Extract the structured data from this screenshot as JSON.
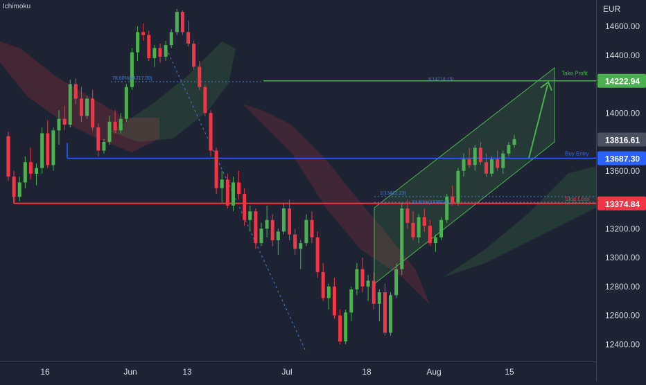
{
  "header": {
    "indicator": "Ichimoku",
    "currency": "EUR"
  },
  "chart_data": {
    "type": "candlestick",
    "y_ticks": [
      12400,
      12600,
      12800,
      13000,
      13200,
      13400,
      13600,
      13800,
      14000,
      14200,
      14400,
      14600
    ],
    "ylim": [
      12330,
      14760
    ],
    "x_ticks": [
      "16",
      "Jun",
      "13",
      "Jul",
      "18",
      "Aug",
      "15"
    ],
    "price_labels": [
      {
        "text": "14222.94",
        "value": 14222.94,
        "color": "#4caf50"
      },
      {
        "text": "13816.61",
        "value": 13816.61,
        "color": "#4a5060"
      },
      {
        "text": "13687.30",
        "value": 13687.3,
        "color": "#2962ff"
      },
      {
        "text": "13374.84",
        "value": 13374.84,
        "color": "#f23645"
      }
    ],
    "annotations": {
      "take_profit": "Take Profit",
      "buy_entry": "Buy Entry",
      "stop_loss": "Stop Loss",
      "fib_left": "78.60%(14217.00)",
      "fib_right": "1(14210.15)",
      "fib_mid_top": "1(13422.23)",
      "fib_mid_bottom": "23.60%(13382.81)"
    },
    "levels": {
      "take_profit": 14222.94,
      "buy_entry": 13687.3,
      "stop_loss": 13374.84
    },
    "colors": {
      "up": "#4caf50",
      "down": "#f23645",
      "take_profit": "#4caf50",
      "buy_entry": "#2962ff",
      "stop_loss": "#f23645",
      "fib": "#4a78c8",
      "channel": "#4caf50"
    },
    "candles": [
      [
        13840,
        13870,
        13530,
        13560
      ],
      [
        13560,
        13600,
        13380,
        13420
      ],
      [
        13420,
        13560,
        13390,
        13520
      ],
      [
        13520,
        13700,
        13480,
        13660
      ],
      [
        13660,
        13760,
        13540,
        13580
      ],
      [
        13580,
        13650,
        13500,
        13620
      ],
      [
        13620,
        13900,
        13580,
        13860
      ],
      [
        13860,
        13950,
        13620,
        13640
      ],
      [
        13640,
        13900,
        13600,
        13880
      ],
      [
        13880,
        14020,
        13780,
        13960
      ],
      [
        13960,
        14050,
        13880,
        13920
      ],
      [
        13920,
        14230,
        13900,
        14200
      ],
      [
        14200,
        14240,
        14060,
        14100
      ],
      [
        14100,
        14180,
        13940,
        13980
      ],
      [
        13980,
        14120,
        13960,
        14100
      ],
      [
        14100,
        14160,
        13880,
        13900
      ],
      [
        13900,
        13930,
        13700,
        13740
      ],
      [
        13740,
        13820,
        13720,
        13800
      ],
      [
        13800,
        13980,
        13780,
        13940
      ],
      [
        13940,
        14020,
        13860,
        13880
      ],
      [
        13880,
        14000,
        13860,
        13960
      ],
      [
        13960,
        14200,
        13940,
        14180
      ],
      [
        14180,
        14450,
        14160,
        14420
      ],
      [
        14420,
        14600,
        14360,
        14560
      ],
      [
        14560,
        14620,
        14500,
        14540
      ],
      [
        14540,
        14570,
        14360,
        14380
      ],
      [
        14380,
        14470,
        14320,
        14450
      ],
      [
        14450,
        14480,
        14350,
        14390
      ],
      [
        14390,
        14500,
        14360,
        14470
      ],
      [
        14470,
        14580,
        14450,
        14560
      ],
      [
        14560,
        14720,
        14540,
        14700
      ],
      [
        14700,
        14710,
        14540,
        14560
      ],
      [
        14560,
        14640,
        14460,
        14480
      ],
      [
        14480,
        14500,
        14300,
        14320
      ],
      [
        14320,
        14360,
        14160,
        14180
      ],
      [
        14180,
        14200,
        13980,
        14000
      ],
      [
        14000,
        14020,
        13700,
        13740
      ],
      [
        13740,
        13760,
        13440,
        13480
      ],
      [
        13480,
        13600,
        13380,
        13540
      ],
      [
        13540,
        13580,
        13340,
        13360
      ],
      [
        13360,
        13560,
        13320,
        13520
      ],
      [
        13520,
        13600,
        13400,
        13440
      ],
      [
        13440,
        13480,
        13220,
        13260
      ],
      [
        13260,
        13360,
        13180,
        13320
      ],
      [
        13320,
        13340,
        13060,
        13100
      ],
      [
        13100,
        13240,
        13080,
        13200
      ],
      [
        13200,
        13360,
        13140,
        13260
      ],
      [
        13260,
        13300,
        13080,
        13120
      ],
      [
        13120,
        13200,
        13020,
        13180
      ],
      [
        13180,
        13380,
        13160,
        13340
      ],
      [
        13340,
        13400,
        13120,
        13160
      ],
      [
        13160,
        13200,
        13020,
        13060
      ],
      [
        13060,
        13120,
        12920,
        13100
      ],
      [
        13100,
        13300,
        13080,
        13260
      ],
      [
        13260,
        13320,
        13100,
        13140
      ],
      [
        13140,
        13180,
        12860,
        12900
      ],
      [
        12900,
        12960,
        12700,
        12720
      ],
      [
        12720,
        12820,
        12640,
        12800
      ],
      [
        12800,
        12860,
        12580,
        12600
      ],
      [
        12600,
        12640,
        12400,
        12420
      ],
      [
        12420,
        12640,
        12400,
        12620
      ],
      [
        12620,
        12800,
        12560,
        12780
      ],
      [
        12780,
        12960,
        12740,
        12920
      ],
      [
        12920,
        13000,
        12760,
        12800
      ],
      [
        12800,
        12880,
        12700,
        12840
      ],
      [
        12840,
        12900,
        12640,
        12680
      ],
      [
        12680,
        12780,
        12560,
        12760
      ],
      [
        12760,
        12820,
        12460,
        12480
      ],
      [
        12480,
        12760,
        12460,
        12740
      ],
      [
        12740,
        12960,
        12720,
        12920
      ],
      [
        12920,
        13380,
        12880,
        13340
      ],
      [
        13340,
        13400,
        13200,
        13240
      ],
      [
        13240,
        13320,
        13120,
        13140
      ],
      [
        13140,
        13300,
        13100,
        13280
      ],
      [
        13280,
        13340,
        13180,
        13220
      ],
      [
        13220,
        13260,
        13080,
        13100
      ],
      [
        13100,
        13160,
        13040,
        13140
      ],
      [
        13140,
        13280,
        13120,
        13260
      ],
      [
        13260,
        13440,
        13240,
        13420
      ],
      [
        13420,
        13500,
        13360,
        13380
      ],
      [
        13380,
        13620,
        13360,
        13600
      ],
      [
        13600,
        13720,
        13560,
        13680
      ],
      [
        13680,
        13760,
        13620,
        13640
      ],
      [
        13640,
        13780,
        13600,
        13760
      ],
      [
        13760,
        13800,
        13640,
        13660
      ],
      [
        13660,
        13720,
        13560,
        13580
      ],
      [
        13580,
        13700,
        13560,
        13680
      ],
      [
        13680,
        13740,
        13600,
        13620
      ],
      [
        13620,
        13740,
        13580,
        13720
      ],
      [
        13720,
        13800,
        13700,
        13780
      ],
      [
        13780,
        13850,
        13760,
        13820
      ]
    ]
  }
}
